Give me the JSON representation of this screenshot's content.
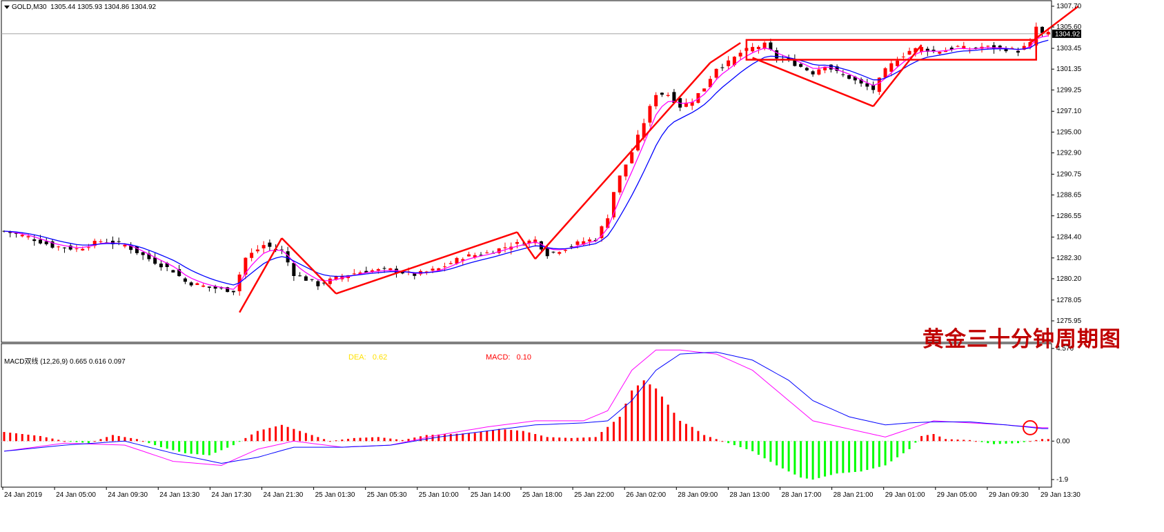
{
  "header": {
    "symbol": "GOLD,M30",
    "ohlc": "1305.44 1305.93 1304.86 1304.92"
  },
  "macd_panel": {
    "label": "MACD双线 (12,26,9) 0.665 0.616 0.097",
    "dea_label": "DEA:",
    "dea_value": "0.62",
    "macd_label": "MACD:",
    "macd_value": "0.10"
  },
  "title_cn": "黄金三十分钟周期图",
  "colors": {
    "bull": "#ff0000",
    "bear": "#000000",
    "ma_fast": "#ff00ff",
    "ma_slow": "#0000ff",
    "hist_pos": "#ff0000",
    "hist_neg": "#00ff00",
    "annotation": "#ff0000"
  },
  "chart_data": [
    {
      "type": "candlestick",
      "title": "GOLD,M30",
      "ylim": [
        1275.95,
        1307.7
      ],
      "y_ticks": [
        "1307.70",
        "1305.60",
        "1303.45",
        "1301.35",
        "1299.25",
        "1297.10",
        "1295.00",
        "1292.90",
        "1290.75",
        "1288.65",
        "1286.55",
        "1284.40",
        "1282.30",
        "1280.20",
        "1278.05",
        "1275.95"
      ],
      "current_price": "1304.92",
      "x_ticks": [
        "24 Jan 2019",
        "24 Jan 05:00",
        "24 Jan 09:30",
        "24 Jan 13:30",
        "24 Jan 17:30",
        "24 Jan 21:30",
        "25 Jan 01:30",
        "25 Jan 05:30",
        "25 Jan 10:00",
        "25 Jan 14:00",
        "25 Jan 18:00",
        "25 Jan 22:00",
        "26 Jan 02:00",
        "28 Jan 09:00",
        "28 Jan 13:00",
        "28 Jan 17:00",
        "28 Jan 21:00",
        "29 Jan 01:00",
        "29 Jan 05:00",
        "29 Jan 09:30",
        "29 Jan 13:30"
      ],
      "close_path": [
        [
          0,
          1285.0
        ],
        [
          4,
          1284.4
        ],
        [
          8,
          1283.5
        ],
        [
          12,
          1283.2
        ],
        [
          16,
          1284.0
        ],
        [
          20,
          1283.6
        ],
        [
          24,
          1282.2
        ],
        [
          28,
          1281.0
        ],
        [
          30,
          1279.9
        ],
        [
          34,
          1279.3
        ],
        [
          38,
          1279.0
        ],
        [
          40,
          1282.3
        ],
        [
          43,
          1283.6
        ],
        [
          46,
          1283.0
        ],
        [
          48,
          1280.7
        ],
        [
          52,
          1279.6
        ],
        [
          56,
          1280.5
        ],
        [
          60,
          1281.0
        ],
        [
          64,
          1281.1
        ],
        [
          68,
          1280.6
        ],
        [
          72,
          1281.2
        ],
        [
          76,
          1282.4
        ],
        [
          80,
          1282.8
        ],
        [
          84,
          1283.6
        ],
        [
          88,
          1284.1
        ],
        [
          90,
          1282.7
        ],
        [
          93,
          1283.3
        ],
        [
          96,
          1284.0
        ],
        [
          98,
          1284.2
        ],
        [
          100,
          1286.5
        ],
        [
          101,
          1289.0
        ],
        [
          102,
          1290.5
        ],
        [
          104,
          1293.0
        ],
        [
          106,
          1296.0
        ],
        [
          108,
          1298.9
        ],
        [
          110,
          1298.8
        ],
        [
          112,
          1297.6
        ],
        [
          114,
          1298.2
        ],
        [
          116,
          1299.5
        ],
        [
          118,
          1301.5
        ],
        [
          120,
          1302.0
        ],
        [
          122,
          1303.0
        ],
        [
          124,
          1303.5
        ],
        [
          126,
          1303.8
        ],
        [
          128,
          1302.5
        ],
        [
          130,
          1302.2
        ],
        [
          132,
          1301.6
        ],
        [
          134,
          1301.0
        ],
        [
          136,
          1301.8
        ],
        [
          138,
          1301.0
        ],
        [
          140,
          1300.5
        ],
        [
          142,
          1299.8
        ],
        [
          144,
          1299.3
        ],
        [
          146,
          1301.2
        ],
        [
          148,
          1302.4
        ],
        [
          150,
          1303.2
        ],
        [
          152,
          1303.5
        ],
        [
          154,
          1303.1
        ],
        [
          156,
          1303.3
        ],
        [
          158,
          1303.6
        ],
        [
          160,
          1303.3
        ],
        [
          162,
          1303.6
        ],
        [
          164,
          1303.5
        ],
        [
          166,
          1303.4
        ],
        [
          168,
          1303.2
        ],
        [
          170,
          1303.9
        ],
        [
          171,
          1305.6
        ],
        [
          172,
          1304.9
        ]
      ],
      "series": [
        {
          "name": "MA fast"
        },
        {
          "name": "MA slow"
        }
      ],
      "annotations": [
        "triangle-patterns",
        "rectangle-range",
        "breakout-arrow"
      ]
    },
    {
      "type": "macd",
      "title": "MACD双线 (12,26,9)",
      "ylim": [
        -1.9,
        4.576
      ],
      "y_ticks": [
        "4.576",
        "0.00",
        "-1.9"
      ],
      "values": {
        "macd": 0.665,
        "signal": 0.616,
        "histogram": 0.097
      },
      "histogram_path": [
        [
          0,
          0.45
        ],
        [
          6,
          0.25
        ],
        [
          10,
          0.0
        ],
        [
          14,
          -0.1
        ],
        [
          18,
          0.3
        ],
        [
          22,
          0.1
        ],
        [
          26,
          -0.3
        ],
        [
          30,
          -0.6
        ],
        [
          34,
          -0.7
        ],
        [
          38,
          -0.2
        ],
        [
          42,
          0.5
        ],
        [
          46,
          0.8
        ],
        [
          50,
          0.4
        ],
        [
          54,
          0.0
        ],
        [
          58,
          0.15
        ],
        [
          62,
          0.2
        ],
        [
          66,
          0.05
        ],
        [
          70,
          0.3
        ],
        [
          74,
          0.35
        ],
        [
          78,
          0.4
        ],
        [
          82,
          0.6
        ],
        [
          86,
          0.5
        ],
        [
          90,
          0.2
        ],
        [
          94,
          0.15
        ],
        [
          98,
          0.2
        ],
        [
          102,
          1.2
        ],
        [
          104,
          2.5
        ],
        [
          106,
          3.0
        ],
        [
          108,
          2.6
        ],
        [
          110,
          1.8
        ],
        [
          112,
          1.0
        ],
        [
          114,
          0.7
        ],
        [
          116,
          0.3
        ],
        [
          118,
          0.1
        ],
        [
          120,
          -0.1
        ],
        [
          124,
          -0.5
        ],
        [
          128,
          -1.2
        ],
        [
          132,
          -1.8
        ],
        [
          134,
          -1.9
        ],
        [
          138,
          -1.6
        ],
        [
          142,
          -1.5
        ],
        [
          146,
          -1.2
        ],
        [
          150,
          -0.4
        ],
        [
          152,
          0.25
        ],
        [
          154,
          0.35
        ],
        [
          156,
          0.1
        ],
        [
          160,
          0.05
        ],
        [
          164,
          -0.15
        ],
        [
          168,
          -0.1
        ],
        [
          172,
          0.1
        ]
      ],
      "macd_line_path": [
        [
          0,
          -0.5
        ],
        [
          10,
          -0.1
        ],
        [
          20,
          -0.2
        ],
        [
          28,
          -1.0
        ],
        [
          36,
          -1.2
        ],
        [
          42,
          -0.4
        ],
        [
          48,
          0.0
        ],
        [
          56,
          -0.3
        ],
        [
          64,
          -0.2
        ],
        [
          72,
          0.3
        ],
        [
          80,
          0.7
        ],
        [
          88,
          1.0
        ],
        [
          96,
          1.0
        ],
        [
          100,
          1.5
        ],
        [
          104,
          3.5
        ],
        [
          108,
          4.5
        ],
        [
          112,
          4.5
        ],
        [
          118,
          4.3
        ],
        [
          124,
          3.5
        ],
        [
          130,
          2.0
        ],
        [
          134,
          1.0
        ],
        [
          140,
          0.6
        ],
        [
          146,
          0.2
        ],
        [
          150,
          0.6
        ],
        [
          154,
          1.0
        ],
        [
          160,
          0.9
        ],
        [
          166,
          0.8
        ],
        [
          172,
          0.66
        ]
      ],
      "signal_line_path": [
        [
          0,
          -0.5
        ],
        [
          10,
          -0.2
        ],
        [
          20,
          0.0
        ],
        [
          28,
          -0.6
        ],
        [
          36,
          -1.1
        ],
        [
          42,
          -0.8
        ],
        [
          48,
          -0.3
        ],
        [
          56,
          -0.3
        ],
        [
          64,
          -0.2
        ],
        [
          72,
          0.2
        ],
        [
          80,
          0.5
        ],
        [
          88,
          0.8
        ],
        [
          96,
          0.9
        ],
        [
          100,
          1.0
        ],
        [
          104,
          2.0
        ],
        [
          108,
          3.5
        ],
        [
          112,
          4.3
        ],
        [
          118,
          4.4
        ],
        [
          124,
          4.0
        ],
        [
          130,
          3.0
        ],
        [
          134,
          2.0
        ],
        [
          140,
          1.2
        ],
        [
          146,
          0.8
        ],
        [
          150,
          0.9
        ],
        [
          154,
          0.95
        ],
        [
          160,
          0.95
        ],
        [
          166,
          0.8
        ],
        [
          172,
          0.62
        ]
      ]
    }
  ]
}
